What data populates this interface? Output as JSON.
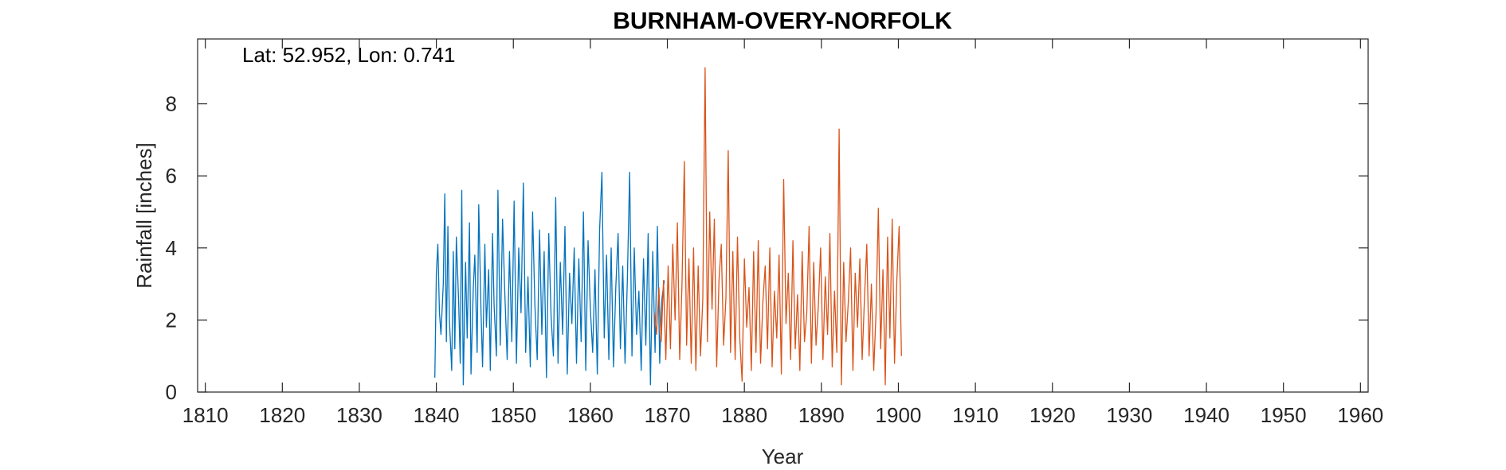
{
  "chart_data": {
    "type": "line",
    "title": "BURNHAM-OVERY-NORFOLK",
    "annotation": "Lat: 52.952, Lon: 0.741",
    "xlabel": "Year",
    "ylabel": "Rainfall [inches]",
    "xlim": [
      1809,
      1961
    ],
    "ylim": [
      0,
      9.8
    ],
    "xticks": [
      1810,
      1820,
      1830,
      1840,
      1850,
      1860,
      1870,
      1880,
      1890,
      1900,
      1910,
      1920,
      1930,
      1940,
      1950,
      1960
    ],
    "yticks": [
      0,
      2,
      4,
      6,
      8
    ],
    "grid": false,
    "legend": "none",
    "series": [
      {
        "color": "#0072BD",
        "x": [
          1839.8,
          1840.0,
          1840.2,
          1840.4,
          1840.6,
          1840.9,
          1841.1,
          1841.3,
          1841.5,
          1841.7,
          1842.0,
          1842.2,
          1842.4,
          1842.6,
          1842.9,
          1843.1,
          1843.3,
          1843.5,
          1843.8,
          1844.0,
          1844.3,
          1844.5,
          1844.8,
          1845.0,
          1845.3,
          1845.5,
          1845.8,
          1846.0,
          1846.3,
          1846.5,
          1846.8,
          1847.0,
          1847.3,
          1847.5,
          1847.8,
          1848.0,
          1848.3,
          1848.6,
          1848.9,
          1849.2,
          1849.5,
          1849.8,
          1850.1,
          1850.4,
          1850.7,
          1851.0,
          1851.3,
          1851.6,
          1851.9,
          1852.2,
          1852.5,
          1852.8,
          1853.1,
          1853.4,
          1853.7,
          1854.0,
          1854.3,
          1854.6,
          1854.9,
          1855.2,
          1855.5,
          1855.8,
          1856.1,
          1856.4,
          1856.7,
          1857.0,
          1857.3,
          1857.6,
          1857.9,
          1858.2,
          1858.5,
          1858.8,
          1859.1,
          1859.4,
          1859.7,
          1860.0,
          1860.3,
          1860.6,
          1860.9,
          1861.2,
          1861.5,
          1861.8,
          1862.1,
          1862.4,
          1862.7,
          1863.0,
          1863.3,
          1863.6,
          1863.9,
          1864.2,
          1864.5,
          1864.8,
          1865.1,
          1865.4,
          1865.7,
          1866.0,
          1866.3,
          1866.6,
          1866.9,
          1867.2,
          1867.5,
          1867.8,
          1868.1,
          1868.4,
          1868.7,
          1869.0,
          1869.3,
          1869.6
        ],
        "y": [
          0.4,
          3.3,
          4.1,
          2.2,
          1.6,
          3.0,
          5.5,
          1.4,
          4.6,
          2.0,
          0.6,
          3.9,
          1.2,
          4.3,
          2.5,
          0.8,
          5.6,
          0.2,
          3.6,
          1.5,
          4.7,
          0.5,
          2.9,
          3.8,
          1.1,
          5.2,
          2.2,
          0.7,
          4.1,
          1.8,
          3.4,
          0.6,
          4.4,
          2.4,
          1.0,
          5.6,
          1.3,
          4.8,
          2.7,
          0.9,
          3.9,
          1.4,
          5.3,
          0.8,
          4.0,
          2.2,
          5.8,
          1.1,
          3.2,
          0.7,
          5.0,
          2.4,
          0.9,
          4.5,
          1.6,
          3.9,
          0.4,
          4.4,
          2.1,
          1.0,
          5.4,
          0.8,
          3.6,
          1.6,
          4.6,
          0.5,
          3.3,
          1.9,
          4.0,
          0.8,
          3.7,
          1.4,
          5.0,
          0.6,
          4.2,
          2.3,
          1.1,
          3.4,
          0.5,
          4.5,
          6.1,
          1.5,
          3.8,
          0.9,
          4.0,
          0.7,
          2.9,
          4.4,
          1.2,
          3.5,
          0.8,
          3.1,
          6.1,
          1.0,
          4.0,
          1.6,
          2.8,
          0.6,
          3.7,
          1.3,
          4.4,
          0.2,
          3.9,
          1.1,
          4.6,
          0.8,
          2.6,
          3.1
        ]
      },
      {
        "color": "#D95319",
        "x": [
          1868.3,
          1868.6,
          1868.9,
          1869.2,
          1869.5,
          1869.8,
          1870.1,
          1870.4,
          1870.7,
          1871.0,
          1871.3,
          1871.6,
          1871.9,
          1872.2,
          1872.5,
          1872.8,
          1873.1,
          1873.4,
          1873.7,
          1874.0,
          1874.3,
          1874.6,
          1874.9,
          1875.2,
          1875.5,
          1875.8,
          1876.1,
          1876.4,
          1876.7,
          1877.0,
          1877.3,
          1877.6,
          1877.9,
          1878.2,
          1878.5,
          1878.8,
          1879.1,
          1879.4,
          1879.7,
          1880.0,
          1880.3,
          1880.6,
          1880.9,
          1881.2,
          1881.5,
          1881.8,
          1882.1,
          1882.4,
          1882.7,
          1883.0,
          1883.3,
          1883.6,
          1883.9,
          1884.2,
          1884.5,
          1884.8,
          1885.1,
          1885.4,
          1885.7,
          1886.0,
          1886.3,
          1886.6,
          1886.9,
          1887.2,
          1887.5,
          1887.8,
          1888.1,
          1888.4,
          1888.7,
          1889.0,
          1889.3,
          1889.6,
          1889.9,
          1890.2,
          1890.5,
          1890.8,
          1891.1,
          1891.4,
          1891.7,
          1892.0,
          1892.3,
          1892.6,
          1892.9,
          1893.2,
          1893.5,
          1893.8,
          1894.1,
          1894.4,
          1894.7,
          1895.0,
          1895.3,
          1895.6,
          1895.9,
          1896.2,
          1896.5,
          1896.8,
          1897.1,
          1897.4,
          1897.7,
          1898.0,
          1898.3,
          1898.6,
          1898.9,
          1899.2,
          1899.5,
          1899.8,
          1900.1,
          1900.4
        ],
        "y": [
          2.2,
          1.6,
          2.9,
          1.4,
          3.1,
          0.9,
          3.5,
          1.2,
          4.1,
          2.0,
          4.7,
          0.9,
          3.0,
          6.4,
          1.3,
          3.7,
          0.8,
          4.0,
          0.6,
          3.5,
          1.0,
          2.6,
          9.0,
          1.4,
          5.0,
          2.3,
          4.8,
          0.7,
          3.1,
          4.1,
          1.3,
          2.6,
          6.7,
          1.1,
          3.9,
          0.9,
          4.3,
          1.5,
          0.3,
          3.7,
          1.8,
          2.9,
          0.6,
          3.9,
          1.1,
          4.2,
          0.8,
          2.5,
          3.5,
          1.2,
          4.0,
          0.7,
          2.8,
          1.5,
          3.8,
          0.5,
          5.9,
          1.9,
          3.3,
          0.9,
          4.2,
          1.2,
          2.7,
          0.6,
          3.9,
          1.4,
          2.2,
          4.6,
          0.8,
          3.6,
          1.3,
          2.4,
          4.0,
          0.9,
          3.2,
          1.6,
          4.4,
          0.7,
          2.8,
          1.1,
          7.3,
          0.2,
          3.6,
          1.4,
          2.5,
          4.0,
          0.6,
          3.3,
          1.8,
          3.7,
          0.9,
          2.6,
          4.1,
          1.0,
          3.0,
          0.6,
          2.2,
          5.1,
          1.2,
          3.4,
          0.2,
          4.3,
          1.5,
          4.8,
          0.8,
          3.1,
          4.6,
          1.0
        ]
      }
    ]
  }
}
